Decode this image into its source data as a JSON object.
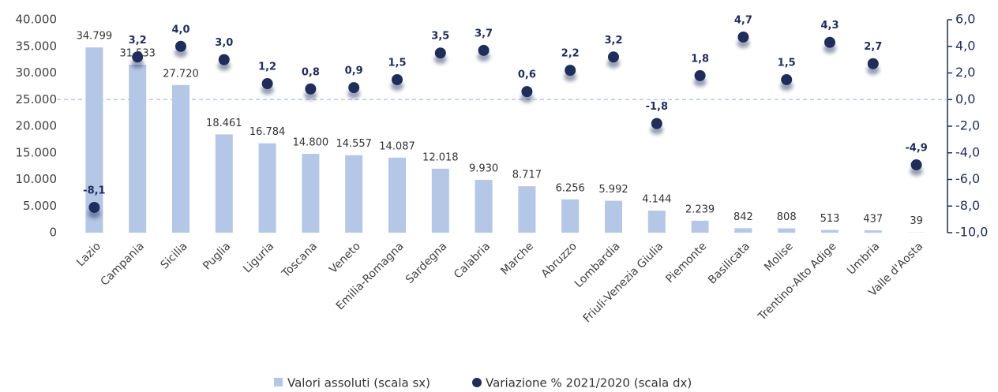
{
  "chart_data": {
    "type": "bar",
    "categories": [
      "Lazio",
      "Campania",
      "Sicilia",
      "Puglia",
      "Liguria",
      "Toscana",
      "Veneto",
      "Emilia-Romagna",
      "Sardegna",
      "Calabria",
      "Marche",
      "Abruzzo",
      "Lombardia",
      "Friuli-Venezia Giulia",
      "Piemonte",
      "Basilicata",
      "Molise",
      "Trentino-Alto Adige",
      "Umbria",
      "Valle d'Aosta"
    ],
    "series": [
      {
        "name": "Valori assoluti (scala sx)",
        "type": "bar",
        "color": "#b4c7e7",
        "values": [
          34799,
          31533,
          27720,
          18461,
          16784,
          14800,
          14557,
          14087,
          12018,
          9930,
          8717,
          6256,
          5992,
          4144,
          2239,
          842,
          808,
          513,
          437,
          39
        ],
        "value_labels": [
          "34.799",
          "31.533",
          "27.720",
          "18.461",
          "16.784",
          "14.800",
          "14.557",
          "14.087",
          "12.018",
          "9.930",
          "8.717",
          "6.256",
          "5.992",
          "4.144",
          "2.239",
          "842",
          "808",
          "513",
          "437",
          "39"
        ]
      },
      {
        "name": "Variazione % 2021/2020 (scala dx)",
        "type": "scatter",
        "color": "#1f2d5a",
        "axis": "y2",
        "values": [
          -8.1,
          3.2,
          4.0,
          3.0,
          1.2,
          0.8,
          0.9,
          1.5,
          3.5,
          3.7,
          0.6,
          2.2,
          3.2,
          -1.8,
          1.8,
          4.7,
          1.5,
          4.3,
          2.7,
          -4.9
        ],
        "value_labels": [
          "-8,1",
          "3,2",
          "4,0",
          "3,0",
          "1,2",
          "0,8",
          "0,9",
          "1,5",
          "3,5",
          "3,7",
          "0,6",
          "2,2",
          "3,2",
          "-1,8",
          "1,8",
          "4,7",
          "1,5",
          "4,3",
          "2,7",
          "-4,9"
        ]
      }
    ],
    "ylim": [
      0,
      40000
    ],
    "yticks": [
      0,
      {
        "value": 5000,
        "label": "5.000"
      },
      {
        "value": 10000,
        "label": "10.000"
      },
      {
        "value": 15000,
        "label": "15.000"
      },
      {
        "value": 20000,
        "label": "20.000"
      },
      {
        "value": 25000,
        "label": "25.000"
      },
      {
        "value": 30000,
        "label": "30.000"
      },
      {
        "value": 35000,
        "label": "35.000"
      },
      {
        "value": 40000,
        "label": "40.000"
      }
    ],
    "y2lim": [
      -10,
      6
    ],
    "y2ticks": [
      {
        "value": -10,
        "label": "-10,0"
      },
      {
        "value": -8,
        "label": "-8,0"
      },
      {
        "value": -6,
        "label": "-6,0"
      },
      {
        "value": -4,
        "label": "-4,0"
      },
      {
        "value": -2,
        "label": "-2,0"
      },
      {
        "value": 0,
        "label": "0,0"
      },
      {
        "value": 2,
        "label": "2,0"
      },
      {
        "value": 4,
        "label": "4,0"
      },
      {
        "value": 6,
        "label": "6,0"
      }
    ],
    "legend": "bottom"
  }
}
